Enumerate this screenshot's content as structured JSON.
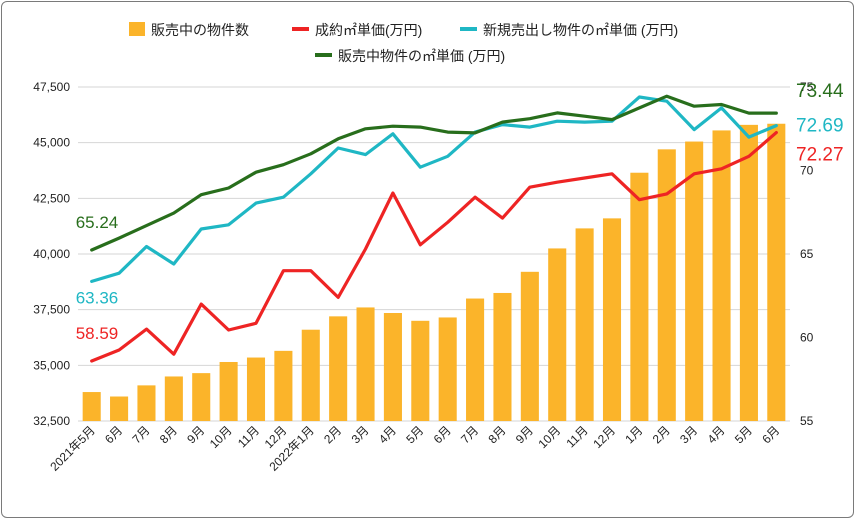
{
  "chart_data": {
    "type": "bar",
    "categories": [
      "2021年5月",
      "6月",
      "7月",
      "8月",
      "9月",
      "10月",
      "11月",
      "12月",
      "2022年1月",
      "2月",
      "3月",
      "4月",
      "5月",
      "6月",
      "7月",
      "8月",
      "9月",
      "10月",
      "11月",
      "12月",
      "1月",
      "2月",
      "3月",
      "4月",
      "5月",
      "6月"
    ],
    "left_axis": {
      "ticks": [
        "32,500",
        "35,000",
        "37,500",
        "40,000",
        "42,500",
        "45,000",
        "47,500"
      ],
      "ylim": [
        32500,
        47500
      ]
    },
    "right_axis": {
      "ticks": [
        "55",
        "60",
        "65",
        "70",
        "75"
      ],
      "ylim": [
        55,
        75
      ]
    },
    "series": [
      {
        "name": "販売中の物件数",
        "kind": "bar",
        "axis": "left",
        "color": "#fbb42a",
        "values": [
          33800,
          33600,
          34100,
          34500,
          34650,
          35150,
          35350,
          35650,
          36600,
          37200,
          37600,
          37350,
          37000,
          37150,
          38000,
          38250,
          39200,
          40250,
          41150,
          41600,
          43650,
          44700,
          45050,
          45550,
          45800,
          45850
        ]
      },
      {
        "name": "成約㎡単価(万円)",
        "kind": "line",
        "axis": "right",
        "color": "#ee2424",
        "start_label": "58.59",
        "end_label": "72.27",
        "values": [
          58.59,
          59.25,
          60.5,
          59.0,
          62.0,
          60.45,
          60.85,
          64.0,
          64.0,
          62.4,
          65.3,
          68.65,
          65.55,
          66.9,
          68.4,
          67.15,
          69.0,
          69.3,
          69.55,
          69.8,
          68.25,
          68.6,
          69.8,
          70.1,
          70.85,
          72.27
        ]
      },
      {
        "name": "新規売出し物件の㎡単価 (万円)",
        "kind": "line",
        "axis": "right",
        "color": "#1fb7c4",
        "start_label": "63.36",
        "end_label": "72.69",
        "values": [
          63.36,
          63.85,
          65.45,
          64.4,
          66.5,
          66.75,
          68.05,
          68.4,
          69.8,
          71.35,
          70.95,
          72.2,
          70.2,
          70.85,
          72.3,
          72.75,
          72.6,
          72.95,
          72.9,
          72.95,
          74.4,
          74.15,
          72.45,
          73.75,
          72.0,
          72.69
        ]
      },
      {
        "name": "販売中物件の㎡単価 (万円)",
        "kind": "line",
        "axis": "right",
        "color": "#286e1c",
        "start_label": "65.24",
        "end_label": "73.44",
        "values": [
          65.24,
          65.95,
          66.7,
          67.45,
          68.55,
          68.95,
          69.9,
          70.35,
          71.0,
          71.9,
          72.5,
          72.65,
          72.6,
          72.3,
          72.25,
          72.9,
          73.1,
          73.45,
          73.25,
          73.05,
          73.75,
          74.45,
          73.85,
          73.95,
          73.44,
          73.44
        ]
      }
    ]
  }
}
